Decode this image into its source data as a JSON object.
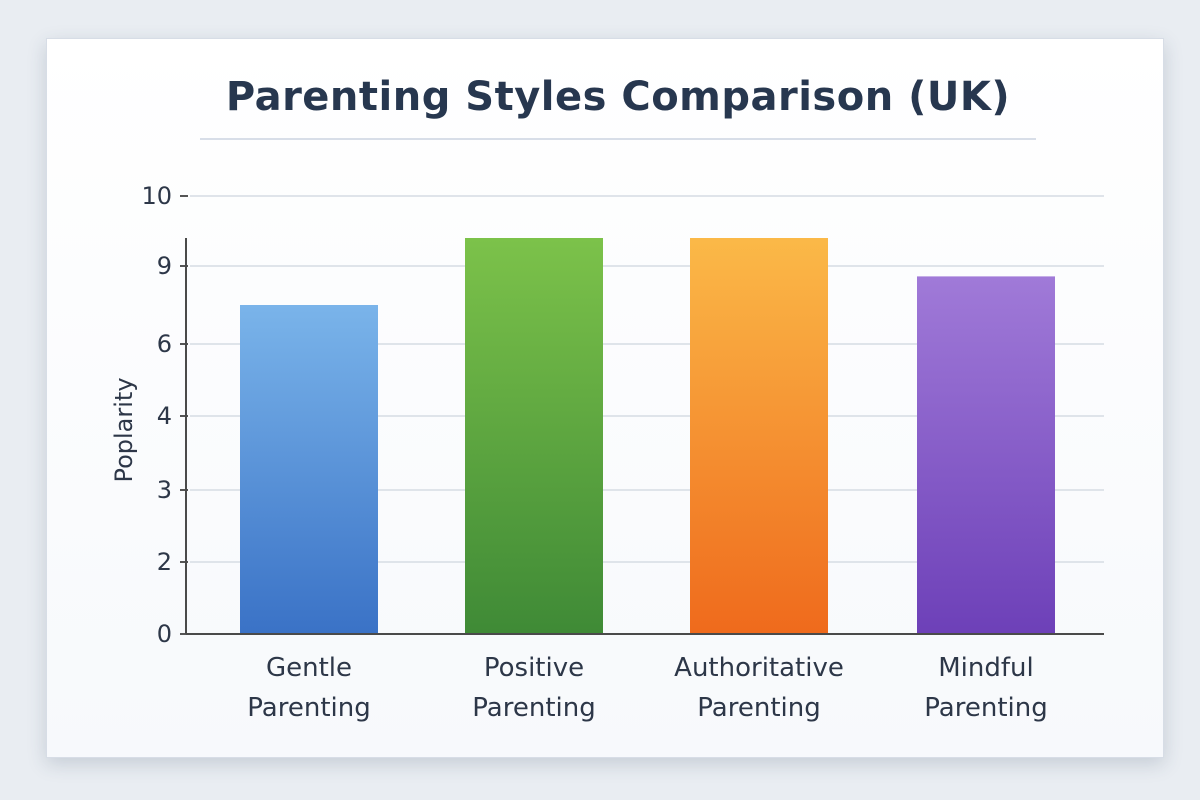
{
  "chart_data": {
    "type": "bar",
    "title": "Parenting Styles Comparison (UK)",
    "ylabel": "Poplarity",
    "xlabel": "",
    "categories": [
      [
        "Gentle",
        "Parenting"
      ],
      [
        "Positive",
        "Parenting"
      ],
      [
        "Authoritative",
        "Parenting"
      ],
      [
        "Mindful",
        "Parenting"
      ]
    ],
    "values": [
      7.5,
      9.4,
      9.4,
      8.6
    ],
    "y_ticks": [
      "0",
      "2",
      "3",
      "4",
      "6",
      "9",
      "10"
    ],
    "colors": [
      [
        "#7ab4ea",
        "#3a72c6"
      ],
      [
        "#7cc24a",
        "#3f8a36"
      ],
      [
        "#fbb948",
        "#ef6a1c"
      ],
      [
        "#a07ad8",
        "#6d40b8"
      ]
    ],
    "grid": true,
    "legend": "none"
  }
}
